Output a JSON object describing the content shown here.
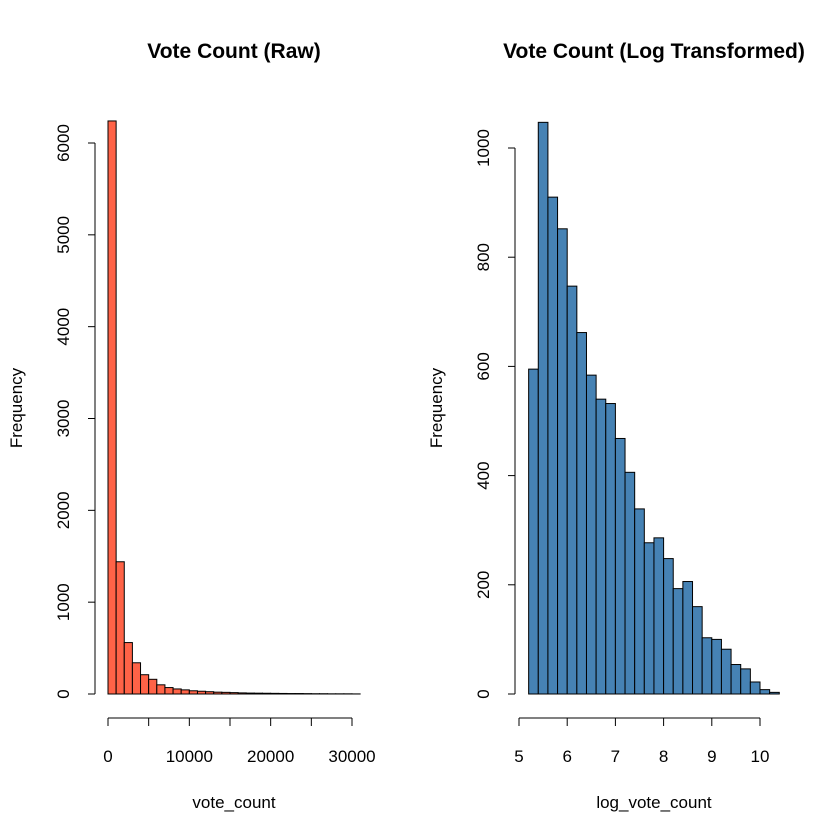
{
  "chart_data": [
    {
      "type": "bar",
      "title": "Vote Count (Raw)",
      "xlabel": "vote_count",
      "ylabel": "Frequency",
      "bar_color": "#FF6347",
      "bin_width": 1000,
      "bin_start": 0,
      "xlim": [
        0,
        31000
      ],
      "ylim": [
        0,
        6250
      ],
      "x_ticks": [
        0,
        5000,
        10000,
        15000,
        20000,
        25000,
        30000
      ],
      "x_tick_labels": [
        "0",
        "",
        "10000",
        "",
        "20000",
        "",
        "30000"
      ],
      "y_ticks": [
        0,
        1000,
        2000,
        3000,
        4000,
        5000,
        6000
      ],
      "y_tick_labels": [
        "0",
        "1000",
        "2000",
        "3000",
        "4000",
        "5000",
        "6000"
      ],
      "values": [
        6240,
        1440,
        560,
        340,
        210,
        160,
        100,
        70,
        55,
        45,
        35,
        30,
        25,
        20,
        18,
        15,
        12,
        10,
        9,
        8,
        7,
        6,
        5,
        5,
        4,
        3,
        3,
        2,
        2,
        2,
        1
      ]
    },
    {
      "type": "bar",
      "title": "Vote Count (Log Transformed)",
      "xlabel": "log_vote_count",
      "ylabel": "Frequency",
      "bar_color": "#4682B4",
      "bin_width": 0.2,
      "bin_start": 5.2,
      "xlim": [
        5,
        10.4
      ],
      "ylim": [
        0,
        1050
      ],
      "x_ticks": [
        5,
        6,
        7,
        8,
        9,
        10
      ],
      "x_tick_labels": [
        "5",
        "6",
        "7",
        "8",
        "9",
        "10"
      ],
      "y_ticks": [
        0,
        200,
        400,
        600,
        800,
        1000
      ],
      "y_tick_labels": [
        "0",
        "200",
        "400",
        "600",
        "800",
        "1000"
      ],
      "values": [
        595,
        1047,
        910,
        852,
        747,
        662,
        584,
        540,
        532,
        468,
        406,
        339,
        277,
        286,
        248,
        193,
        206,
        160,
        103,
        100,
        82,
        54,
        46,
        22,
        8,
        3
      ]
    }
  ]
}
